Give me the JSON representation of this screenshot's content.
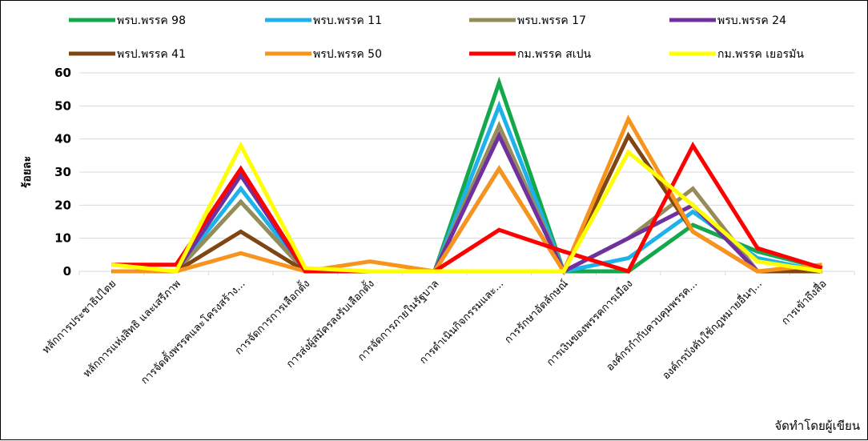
{
  "chart_data": {
    "type": "line",
    "title": "",
    "xlabel": "",
    "ylabel": "ร้อยละ",
    "ylim": [
      0,
      60
    ],
    "yticks": [
      0,
      10,
      20,
      30,
      40,
      50,
      60
    ],
    "grid": "horizontal",
    "legend_position": "top",
    "categories": [
      "หลักการประชาธิปไตย",
      "หลักการแห่งสิทธิ และเสรีภาพ",
      "การจัดตั้งพรรคและโครงสร้าง...",
      "การจัดการการเลือกตั้ง",
      "การส่งผู้สมัครลงรับเลือกตั้ง",
      "การจัดการภายในรัฐบาล",
      "การดำเนินกิจกรรมและ...",
      "การรักษาอัตลักษณ์",
      "การเงินของพรรคการเมือง",
      "องค์กรกำกับควบคุมพรรค...",
      "องค์กรบังคับใช้กฎหมายอื่นๆ...",
      "การเข้าถึงสื่อ"
    ],
    "series": [
      {
        "name": "พรบ.พรรค 98",
        "color": "#13a84b",
        "values": [
          0,
          0,
          21,
          0,
          0,
          0,
          57,
          0,
          0,
          14,
          6,
          1
        ]
      },
      {
        "name": "พรบ.พรรค 11",
        "color": "#1fb2ea",
        "values": [
          0,
          0,
          25,
          0,
          0,
          0,
          50,
          0,
          4,
          18,
          4,
          0
        ]
      },
      {
        "name": "พรบ.พรรค 17",
        "color": "#968c5a",
        "values": [
          0,
          0,
          21,
          0,
          0,
          0,
          44,
          0,
          10,
          25,
          0,
          0
        ]
      },
      {
        "name": "พรบ.พรรค 24",
        "color": "#7030a0",
        "values": [
          0,
          0,
          29,
          0,
          0,
          0,
          41,
          0,
          10,
          20,
          0,
          0
        ]
      },
      {
        "name": "พรป.พรรค 41",
        "color": "#7f4512",
        "values": [
          0,
          0,
          12,
          0,
          0,
          0,
          31,
          0,
          41,
          12,
          0,
          0
        ]
      },
      {
        "name": "พรป.พรรค 50",
        "color": "#f7941d",
        "values": [
          0,
          0,
          5.5,
          0,
          3,
          0,
          31,
          0,
          46,
          12,
          0,
          2
        ]
      },
      {
        "name": "กม.พรรค สเปน",
        "color": "#ff0000",
        "values": [
          2,
          2,
          31,
          0,
          0,
          0,
          12.5,
          6,
          0,
          38,
          7,
          1
        ]
      },
      {
        "name": "กม.พรรค เยอรมัน",
        "color": "#ffff00",
        "values": [
          2,
          0,
          38,
          1,
          0,
          0,
          0,
          0,
          36,
          20,
          3,
          0
        ]
      }
    ],
    "source_note": "จัดทำโดยผู้เขียน"
  }
}
